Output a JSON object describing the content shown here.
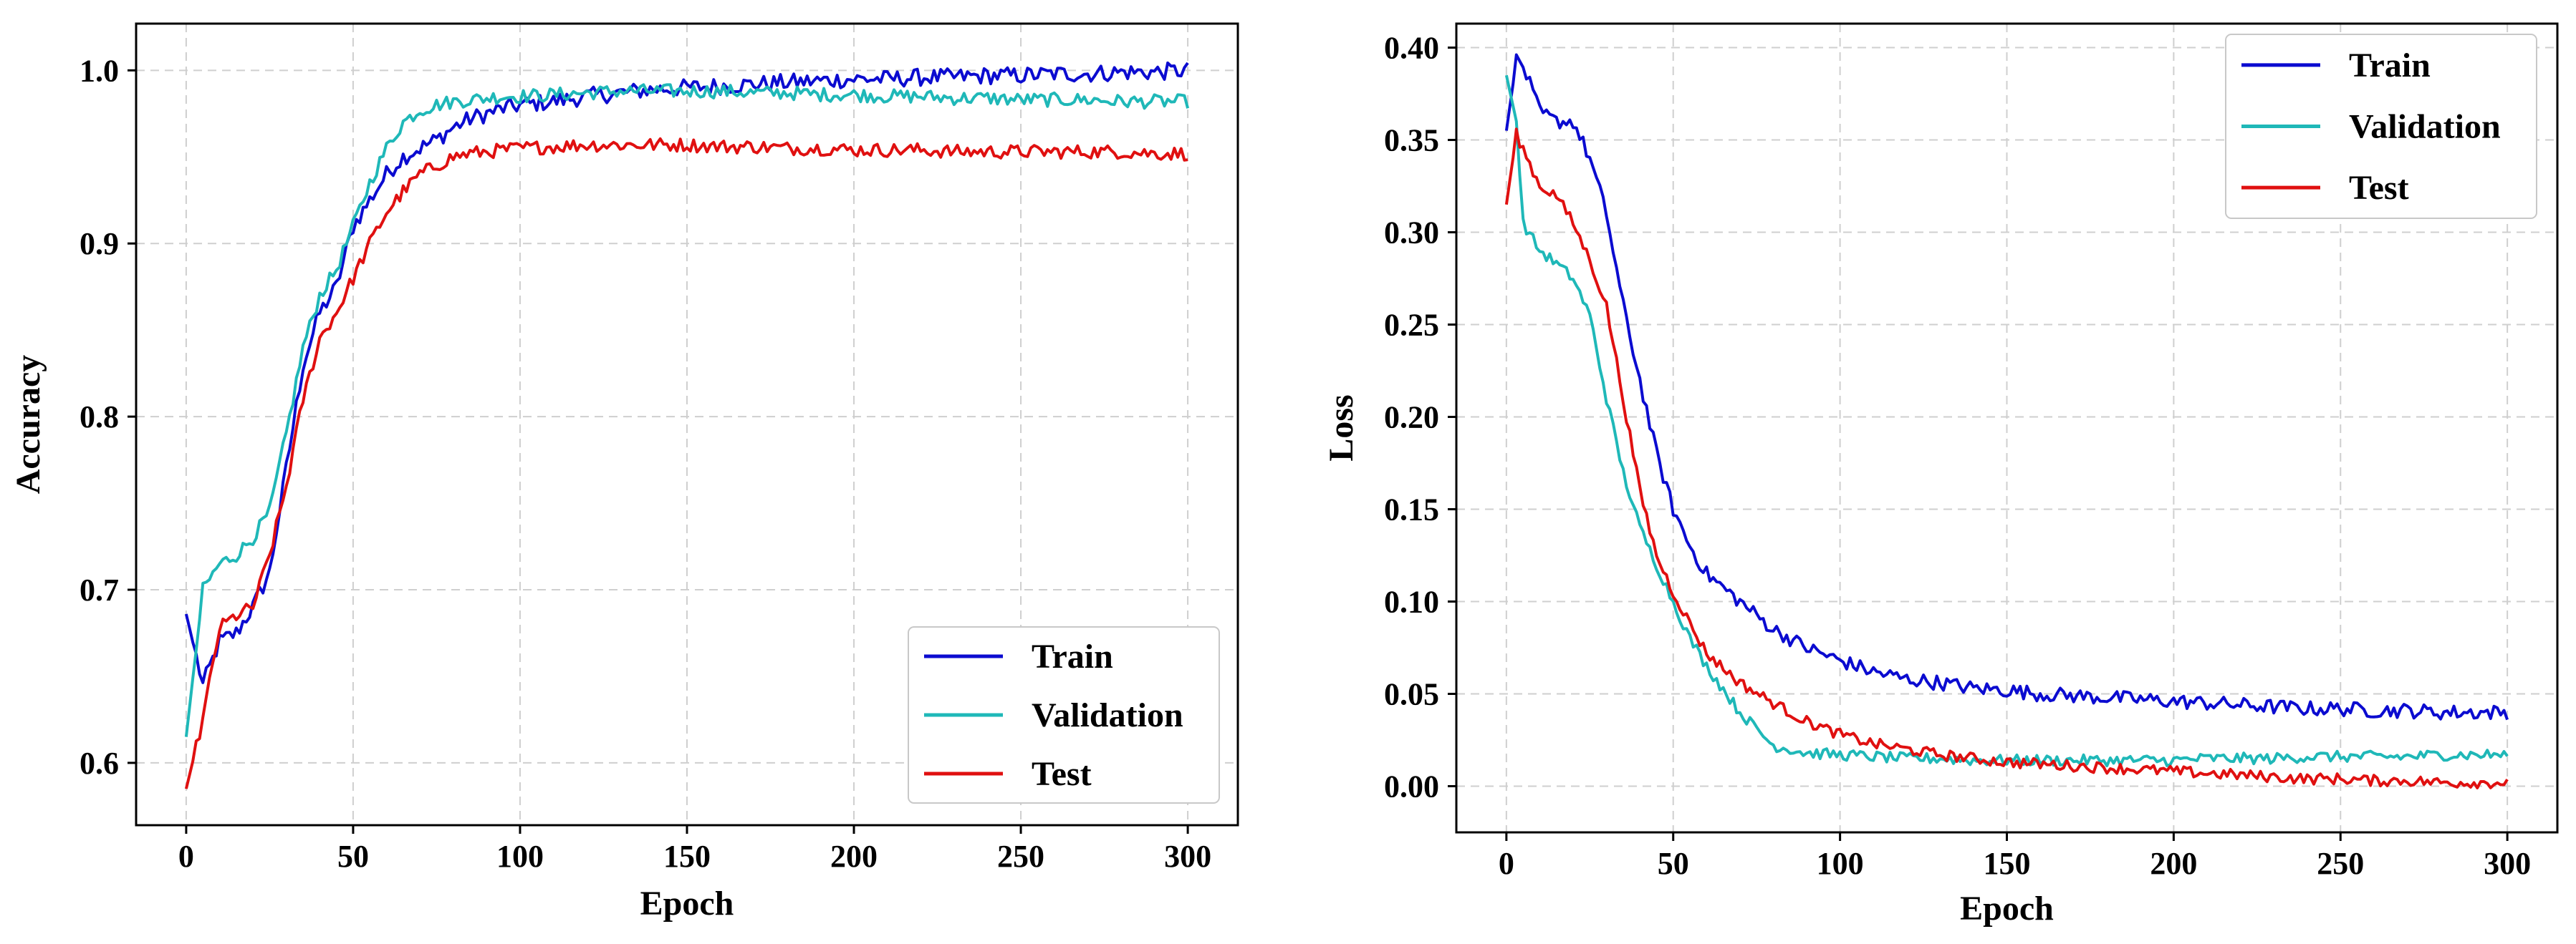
{
  "chart_data": [
    {
      "type": "line",
      "title": "",
      "xlabel": "Epoch",
      "ylabel": "Accuracy",
      "xlim": [
        -15,
        315
      ],
      "ylim": [
        0.564,
        1.027
      ],
      "xticks": [
        0,
        50,
        100,
        150,
        200,
        250,
        300
      ],
      "yticks": [
        0.6,
        0.7,
        0.8,
        0.9,
        1.0
      ],
      "ytick_labels": [
        "0.6",
        "0.7",
        "0.8",
        "0.9",
        "1.0"
      ],
      "grid": true,
      "legend_position": "lower-right",
      "x": [
        0,
        5,
        10,
        15,
        20,
        25,
        30,
        35,
        40,
        45,
        50,
        55,
        60,
        65,
        70,
        75,
        80,
        85,
        90,
        95,
        100,
        110,
        120,
        130,
        140,
        150,
        160,
        170,
        180,
        190,
        200,
        210,
        220,
        230,
        240,
        250,
        260,
        270,
        280,
        290,
        300
      ],
      "series": [
        {
          "name": "Train",
          "color": "#0b0bd0",
          "noise": 0.005,
          "values": [
            0.686,
            0.645,
            0.67,
            0.675,
            0.69,
            0.71,
            0.77,
            0.83,
            0.86,
            0.875,
            0.91,
            0.925,
            0.94,
            0.95,
            0.955,
            0.96,
            0.967,
            0.972,
            0.975,
            0.978,
            0.98,
            0.982,
            0.985,
            0.987,
            0.989,
            0.99,
            0.991,
            0.992,
            0.993,
            0.994,
            0.995,
            0.995,
            0.996,
            0.996,
            0.997,
            0.997,
            0.998,
            0.998,
            0.999,
            0.999,
            1.0
          ]
        },
        {
          "name": "Validation",
          "color": "#1fb8b8",
          "noise": 0.004,
          "values": [
            0.615,
            0.7,
            0.715,
            0.72,
            0.73,
            0.745,
            0.79,
            0.84,
            0.87,
            0.885,
            0.91,
            0.935,
            0.955,
            0.97,
            0.977,
            0.98,
            0.982,
            0.983,
            0.984,
            0.985,
            0.985,
            0.986,
            0.987,
            0.988,
            0.988,
            0.988,
            0.988,
            0.987,
            0.987,
            0.986,
            0.986,
            0.985,
            0.985,
            0.984,
            0.984,
            0.983,
            0.983,
            0.983,
            0.982,
            0.982,
            0.982
          ]
        },
        {
          "name": "Test",
          "color": "#e01010",
          "noise": 0.004,
          "values": [
            0.585,
            0.625,
            0.678,
            0.685,
            0.69,
            0.72,
            0.76,
            0.81,
            0.845,
            0.86,
            0.88,
            0.9,
            0.918,
            0.93,
            0.94,
            0.945,
            0.95,
            0.952,
            0.953,
            0.954,
            0.955,
            0.956,
            0.957,
            0.957,
            0.957,
            0.957,
            0.956,
            0.956,
            0.955,
            0.955,
            0.954,
            0.954,
            0.954,
            0.953,
            0.953,
            0.953,
            0.953,
            0.953,
            0.953,
            0.952,
            0.952
          ]
        }
      ]
    },
    {
      "type": "line",
      "title": "",
      "xlabel": "Epoch",
      "ylabel": "Loss",
      "xlim": [
        -15,
        315
      ],
      "ylim": [
        -0.025,
        0.413
      ],
      "xticks": [
        0,
        50,
        100,
        150,
        200,
        250,
        300
      ],
      "yticks": [
        0.0,
        0.05,
        0.1,
        0.15,
        0.2,
        0.25,
        0.3,
        0.35,
        0.4
      ],
      "ytick_labels": [
        "0.00",
        "0.05",
        "0.10",
        "0.15",
        "0.20",
        "0.25",
        "0.30",
        "0.35",
        "0.40"
      ],
      "grid": true,
      "legend_position": "upper-right",
      "x": [
        0,
        3,
        5,
        10,
        15,
        20,
        25,
        30,
        35,
        40,
        45,
        50,
        55,
        60,
        70,
        80,
        90,
        100,
        110,
        120,
        130,
        140,
        150,
        160,
        170,
        180,
        190,
        200,
        210,
        220,
        230,
        240,
        250,
        260,
        270,
        280,
        290,
        300
      ],
      "series": [
        {
          "name": "Train",
          "color": "#0b0bd0",
          "noise": 0.004,
          "values": [
            0.355,
            0.393,
            0.39,
            0.365,
            0.36,
            0.36,
            0.34,
            0.31,
            0.26,
            0.22,
            0.18,
            0.15,
            0.13,
            0.115,
            0.1,
            0.085,
            0.075,
            0.068,
            0.062,
            0.058,
            0.056,
            0.053,
            0.052,
            0.05,
            0.049,
            0.048,
            0.047,
            0.046,
            0.045,
            0.044,
            0.043,
            0.042,
            0.042,
            0.041,
            0.041,
            0.04,
            0.04,
            0.04
          ]
        },
        {
          "name": "Validation",
          "color": "#1fb8b8",
          "noise": 0.003,
          "values": [
            0.385,
            0.36,
            0.305,
            0.29,
            0.283,
            0.275,
            0.255,
            0.21,
            0.17,
            0.14,
            0.12,
            0.1,
            0.08,
            0.065,
            0.04,
            0.022,
            0.018,
            0.017,
            0.016,
            0.015,
            0.015,
            0.014,
            0.014,
            0.014,
            0.014,
            0.014,
            0.014,
            0.014,
            0.015,
            0.015,
            0.015,
            0.016,
            0.016,
            0.016,
            0.016,
            0.017,
            0.017,
            0.017
          ]
        },
        {
          "name": "Test",
          "color": "#e01010",
          "noise": 0.003,
          "values": [
            0.315,
            0.353,
            0.345,
            0.325,
            0.32,
            0.305,
            0.285,
            0.26,
            0.21,
            0.16,
            0.125,
            0.105,
            0.088,
            0.072,
            0.056,
            0.045,
            0.035,
            0.028,
            0.023,
            0.02,
            0.017,
            0.015,
            0.013,
            0.012,
            0.011,
            0.01,
            0.009,
            0.008,
            0.007,
            0.006,
            0.005,
            0.004,
            0.004,
            0.003,
            0.003,
            0.002,
            0.002,
            0.002
          ]
        }
      ]
    }
  ]
}
